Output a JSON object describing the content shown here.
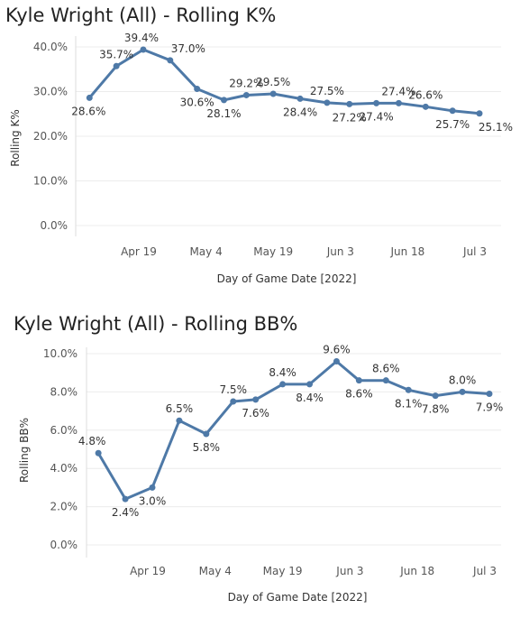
{
  "chart_data": [
    {
      "type": "line",
      "title": "Kyle Wright (All) - Rolling K%",
      "xlabel": "Day of Game Date [2022]",
      "ylabel": "Rolling K%",
      "x_ticks": [
        "Apr 19",
        "May 4",
        "May 19",
        "Jun 3",
        "Jun 18",
        "Jul 3"
      ],
      "y_ticks": [
        "0.0%",
        "10.0%",
        "20.0%",
        "30.0%",
        "40.0%"
      ],
      "ylim": [
        0,
        40
      ],
      "grid": true,
      "color": "#4e79a7",
      "x": [
        "2022-04-08",
        "2022-04-14",
        "2022-04-20",
        "2022-04-26",
        "2022-05-02",
        "2022-05-08",
        "2022-05-13",
        "2022-05-19",
        "2022-05-25",
        "2022-05-31",
        "2022-06-05",
        "2022-06-11",
        "2022-06-16",
        "2022-06-22",
        "2022-06-28",
        "2022-07-04"
      ],
      "values": [
        28.6,
        35.7,
        39.4,
        37.0,
        30.6,
        28.1,
        29.2,
        29.5,
        28.4,
        27.5,
        27.2,
        27.4,
        27.4,
        26.6,
        25.7,
        25.1
      ],
      "labels": [
        "28.6%",
        "35.7%",
        "39.4%",
        "37.0%",
        "30.6%",
        "28.1%",
        "29.2%",
        "29.5%",
        "28.4%",
        "27.5%",
        "27.2%",
        "27.4%",
        "27.4%",
        "26.6%",
        "25.7%",
        "25.1%"
      ]
    },
    {
      "type": "line",
      "title": "Kyle Wright (All) - Rolling BB%",
      "xlabel": "Day of Game Date [2022]",
      "ylabel": "Rolling BB%",
      "x_ticks": [
        "Apr 19",
        "May 4",
        "May 19",
        "Jun 3",
        "Jun 18",
        "Jul 3"
      ],
      "y_ticks": [
        "0.0%",
        "2.0%",
        "4.0%",
        "6.0%",
        "8.0%",
        "10.0%"
      ],
      "ylim": [
        0,
        10
      ],
      "grid": true,
      "color": "#4e79a7",
      "x": [
        "2022-04-08",
        "2022-04-14",
        "2022-04-20",
        "2022-04-26",
        "2022-05-02",
        "2022-05-08",
        "2022-05-13",
        "2022-05-19",
        "2022-05-25",
        "2022-05-31",
        "2022-06-05",
        "2022-06-11",
        "2022-06-16",
        "2022-06-22",
        "2022-06-28",
        "2022-07-04"
      ],
      "values": [
        4.8,
        2.4,
        3.0,
        6.5,
        5.8,
        7.5,
        7.6,
        8.4,
        8.4,
        9.6,
        8.6,
        8.6,
        8.1,
        7.8,
        8.0,
        7.9
      ],
      "labels": [
        "4.8%",
        "2.4%",
        "3.0%",
        "6.5%",
        "5.8%",
        "7.5%",
        "7.6%",
        "8.4%",
        "8.4%",
        "9.6%",
        "8.6%",
        "8.6%",
        "8.1%",
        "7.8%",
        "8.0%",
        "7.9%"
      ]
    }
  ]
}
